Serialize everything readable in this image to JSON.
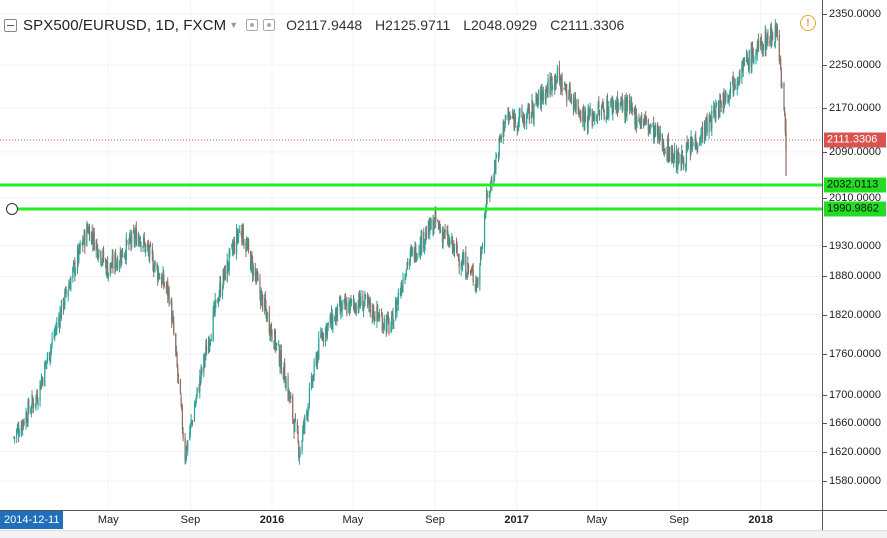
{
  "header": {
    "symbol": "SPX500/EURUSD, 1D, FXCM",
    "open_label": "O",
    "open": "2117.9448",
    "high_label": "H",
    "high": "2125.9711",
    "low_label": "L",
    "low": "2048.0929",
    "close_label": "C",
    "close": "2111.3306",
    "alert_icon": "clock-alert-icon"
  },
  "price_axis": {
    "ticks": [
      "2350.0000",
      "2250.0000",
      "2170.0000",
      "2090.0000",
      "2010.0000",
      "1930.0000",
      "1880.0000",
      "1820.0000",
      "1760.0000",
      "1700.0000",
      "1660.0000",
      "1620.0000",
      "1580.0000"
    ],
    "last_price_tag": "2111.3306",
    "level_tags": [
      "2032.0113",
      "1990.9862"
    ]
  },
  "time_axis": {
    "cursor_date": "2014-12-11",
    "labels": [
      "May",
      "Sep",
      "2016",
      "May",
      "Sep",
      "2017",
      "May",
      "Sep",
      "2018"
    ],
    "bold_labels": [
      "2016",
      "2017",
      "2018"
    ]
  },
  "colors": {
    "up": "#26a69a",
    "down": "#8d6e63",
    "last_price": "#d9534f",
    "horizontal_line": "#22ee22",
    "crosshair": "#1f6fba"
  },
  "chart_data": {
    "type": "candlestick",
    "title": "SPX500/EURUSD, 1D, FXCM",
    "xlabel": "",
    "ylabel": "",
    "ylim": [
      1560,
      2360
    ],
    "y_scale": "log",
    "x": [
      "2014-12-11",
      "2015-01-15",
      "2015-03-01",
      "2015-04-01",
      "2015-05-01",
      "2015-06-15",
      "2015-08-01",
      "2015-08-24",
      "2015-09-15",
      "2015-10-15",
      "2015-11-15",
      "2015-12-15",
      "2016-01-20",
      "2016-02-11",
      "2016-03-15",
      "2016-04-15",
      "2016-05-15",
      "2016-06-27",
      "2016-07-20",
      "2016-09-01",
      "2016-10-01",
      "2016-11-04",
      "2016-11-15",
      "2016-12-15",
      "2017-01-15",
      "2017-03-01",
      "2017-04-15",
      "2017-06-01",
      "2017-07-15",
      "2017-09-01",
      "2017-10-15",
      "2017-12-01",
      "2018-01-10",
      "2018-01-26",
      "2018-02-08"
    ],
    "series": [
      {
        "values": [
          1640,
          1700,
          1860,
          1960,
          1890,
          1950,
          1850,
          1615,
          1720,
          1860,
          1960,
          1850,
          1730,
          1620,
          1790,
          1830,
          1840,
          1800,
          1900,
          1970,
          1920,
          1870,
          1990,
          2150,
          2150,
          2230,
          2150,
          2180,
          2140,
          2070,
          2140,
          2240,
          2300,
          2320,
          2111
        ]
      }
    ],
    "horizontal_levels": [
      2032.0113,
      1990.9862
    ],
    "last_value": 2111.3306,
    "grid": true
  }
}
